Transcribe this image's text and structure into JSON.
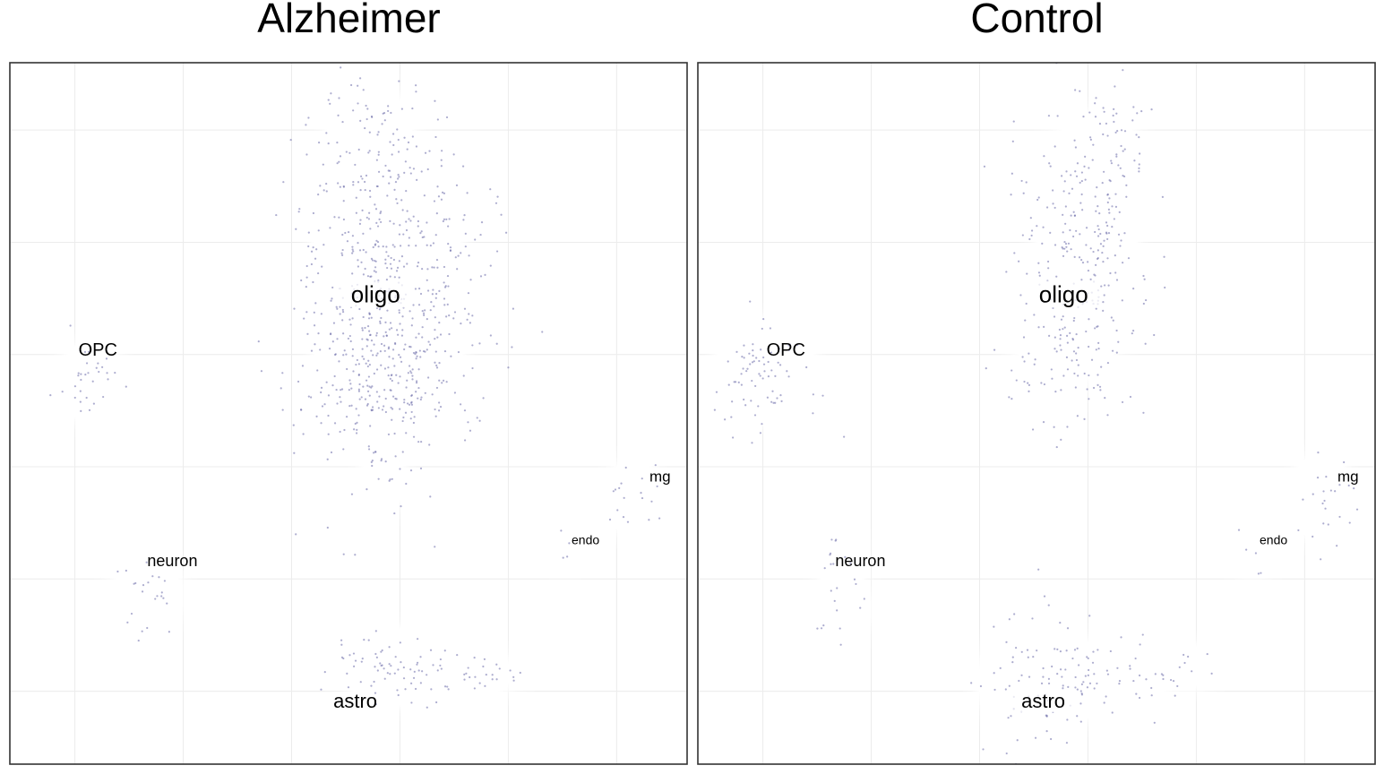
{
  "chart_data": [
    {
      "type": "density",
      "title": "Alzheimer",
      "xlim": [
        0,
        100
      ],
      "ylim": [
        0,
        100
      ],
      "grid": true,
      "clusters": [
        {
          "label": "oligo",
          "x": 54,
          "y": 67,
          "highlight": true,
          "size": 26,
          "blobs": [
            [
              55,
              67,
              9,
              16,
              1.0
            ],
            [
              53,
              90,
              5,
              6,
              0.7
            ],
            [
              56,
              78,
              10,
              10,
              0.6
            ],
            [
              55,
              55,
              7,
              10,
              0.8
            ],
            [
              57,
              62,
              9,
              10,
              0.8
            ],
            [
              55,
              40,
              2,
              3,
              0.9
            ],
            [
              69,
              48,
              2,
              2,
              0.8
            ],
            [
              51,
              56,
              5,
              6,
              0.5
            ]
          ]
        },
        {
          "label": "OPC",
          "x": 13,
          "y": 59,
          "highlight": false,
          "size": 20,
          "blobs": [
            [
              12,
              55,
              3,
              4,
              1.0
            ],
            [
              11,
              52,
              2,
              2,
              0.8
            ],
            [
              12,
              57,
              2.5,
              2,
              0.9
            ]
          ]
        },
        {
          "label": "neuron",
          "x": 24,
          "y": 29,
          "highlight": false,
          "size": 18,
          "blobs": [
            [
              18,
              25,
              2,
              2,
              0.8
            ],
            [
              22,
              24,
              2,
              4,
              0.8
            ],
            [
              18,
              19,
              1.4,
              2,
              0.6
            ]
          ]
        },
        {
          "label": "astro",
          "x": 51,
          "y": 9,
          "highlight": false,
          "size": 22,
          "blobs": [
            [
              56,
              14,
              5,
              4,
              1.0
            ],
            [
              52,
              15,
              4,
              3,
              0.5
            ],
            [
              64,
              12,
              7,
              3,
              0.5
            ],
            [
              71,
              13,
              4,
              2,
              0.4
            ]
          ]
        },
        {
          "label": "endo",
          "x": 85,
          "y": 32,
          "highlight": false,
          "size": 14,
          "blobs": [
            [
              82,
              31,
              1.5,
              1.5,
              0.9
            ]
          ]
        },
        {
          "label": "mg",
          "x": 96,
          "y": 41,
          "highlight": false,
          "size": 17,
          "blobs": [
            [
              92,
              38,
              3,
              4,
              1.0
            ]
          ]
        }
      ]
    },
    {
      "type": "density",
      "title": "Control",
      "xlim": [
        0,
        100
      ],
      "ylim": [
        0,
        100
      ],
      "grid": true,
      "clusters": [
        {
          "label": "oligo",
          "x": 54,
          "y": 67,
          "highlight": true,
          "size": 26,
          "blobs": [
            [
              57,
              68,
              7,
              10,
              0.7
            ],
            [
              60,
              76,
              3,
              4,
              0.8
            ],
            [
              59,
              71,
              2,
              3,
              0.8
            ],
            [
              58,
              82,
              7,
              10,
              0.4
            ],
            [
              53,
              60,
              6,
              8,
              0.3
            ],
            [
              61,
              90,
              3,
              4,
              0.3
            ]
          ]
        },
        {
          "label": "OPC",
          "x": 13,
          "y": 59,
          "highlight": false,
          "size": 20,
          "blobs": [
            [
              10,
              56,
              6,
              6,
              1.0
            ],
            [
              9,
              57,
              4,
              3,
              1.0
            ]
          ]
        },
        {
          "label": "neuron",
          "x": 24,
          "y": 29,
          "highlight": false,
          "size": 18,
          "blobs": [
            [
              21,
              29,
              2,
              3,
              1.0
            ],
            [
              22,
              22,
              2,
              3,
              0.9
            ],
            [
              18,
              19,
              1.2,
              1.5,
              0.7
            ]
          ]
        },
        {
          "label": "astro",
          "x": 51,
          "y": 9,
          "highlight": true,
          "size": 22,
          "blobs": [
            [
              50,
              12,
              7,
              7,
              1.0
            ],
            [
              57,
              12,
              5,
              4,
              0.6
            ],
            [
              65,
              13,
              5,
              3,
              0.5
            ],
            [
              73,
              14,
              2,
              2,
              0.9
            ]
          ]
        },
        {
          "label": "endo",
          "x": 85,
          "y": 32,
          "highlight": false,
          "size": 14,
          "blobs": [
            [
              82,
              30,
              1.5,
              2,
              0.9
            ]
          ]
        },
        {
          "label": "mg",
          "x": 96,
          "y": 41,
          "highlight": false,
          "size": 17,
          "blobs": [
            [
              92,
              38,
              3,
              5,
              1.0
            ]
          ]
        }
      ]
    }
  ]
}
